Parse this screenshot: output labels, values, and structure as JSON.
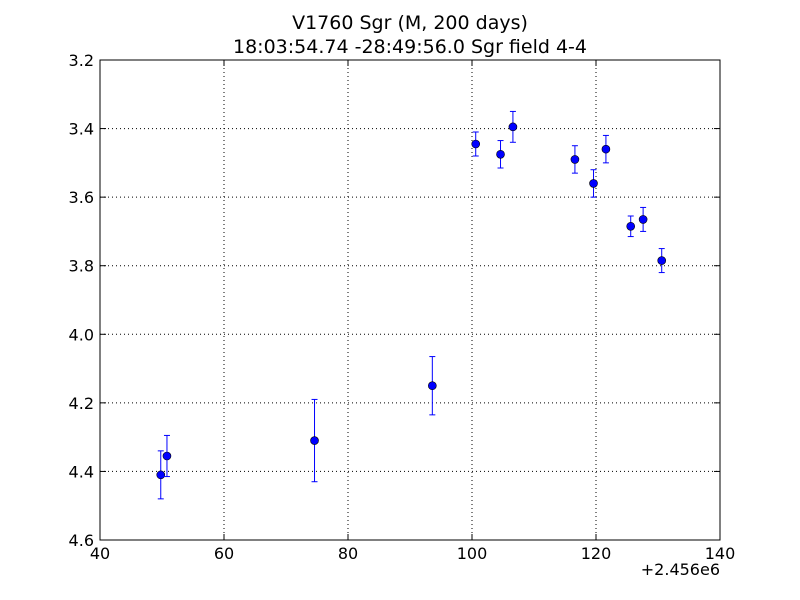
{
  "chart_data": {
    "type": "scatter",
    "title": "V1760 Sgr  (M, 200 days)",
    "subtitle": "18:03:54.74 -28:49:56.0 Sgr field 4-4",
    "xlabel": "",
    "ylabel": "",
    "x_offset_label": "+2.456e6",
    "xlim": [
      40,
      140
    ],
    "ylim": [
      3.2,
      4.6
    ],
    "y_inverted": true,
    "x_ticks": [
      40,
      60,
      80,
      100,
      120,
      140
    ],
    "x_tick_labels": [
      "40",
      "60",
      "80",
      "100",
      "120",
      "140"
    ],
    "y_ticks": [
      3.2,
      3.4,
      3.6,
      3.8,
      4.0,
      4.2,
      4.4,
      4.6
    ],
    "y_tick_labels": [
      "3.2",
      "3.4",
      "3.6",
      "3.8",
      "4.0",
      "4.2",
      "4.4",
      "4.6"
    ],
    "grid": true,
    "colors": {
      "marker": "#0000ff",
      "errorbar": "#0000ff",
      "grid": "#000000",
      "axes": "#000000"
    },
    "points": [
      {
        "x": 49.8,
        "y": 4.41,
        "err": 0.07
      },
      {
        "x": 50.8,
        "y": 4.355,
        "err": 0.06
      },
      {
        "x": 74.6,
        "y": 4.31,
        "err": 0.12
      },
      {
        "x": 93.6,
        "y": 4.15,
        "err": 0.085
      },
      {
        "x": 100.6,
        "y": 3.445,
        "err": 0.035
      },
      {
        "x": 104.6,
        "y": 3.475,
        "err": 0.04
      },
      {
        "x": 106.6,
        "y": 3.395,
        "err": 0.045
      },
      {
        "x": 116.6,
        "y": 3.49,
        "err": 0.04
      },
      {
        "x": 119.6,
        "y": 3.56,
        "err": 0.04
      },
      {
        "x": 121.6,
        "y": 3.46,
        "err": 0.04
      },
      {
        "x": 125.6,
        "y": 3.685,
        "err": 0.03
      },
      {
        "x": 127.6,
        "y": 3.665,
        "err": 0.035
      },
      {
        "x": 130.6,
        "y": 3.785,
        "err": 0.035
      }
    ]
  }
}
